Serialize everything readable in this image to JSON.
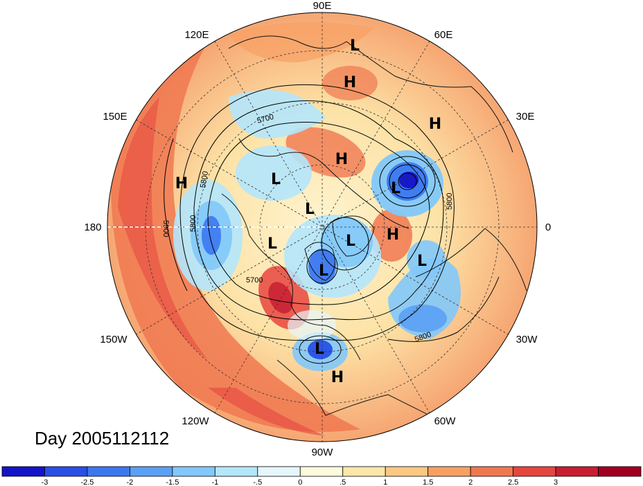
{
  "title": "Day 2005112112",
  "longitude_labels": [
    {
      "text": "90E",
      "deg": 90
    },
    {
      "text": "60E",
      "deg": 60
    },
    {
      "text": "30E",
      "deg": 30
    },
    {
      "text": "0",
      "deg": 0
    },
    {
      "text": "30W",
      "deg": -30
    },
    {
      "text": "60W",
      "deg": -60
    },
    {
      "text": "90W",
      "deg": -90
    },
    {
      "text": "120W",
      "deg": -120
    },
    {
      "text": "150W",
      "deg": -150
    },
    {
      "text": "180",
      "deg": 180
    },
    {
      "text": "150E",
      "deg": 150
    },
    {
      "text": "120E",
      "deg": 120
    }
  ],
  "pressure_centers": [
    {
      "type": "L",
      "key": "L-north-asia"
    },
    {
      "type": "H",
      "key": "H-north-asia"
    },
    {
      "type": "H",
      "key": "H-siberia"
    },
    {
      "type": "H",
      "key": "H-eurasia"
    },
    {
      "type": "H",
      "key": "H-pacific"
    },
    {
      "type": "L",
      "key": "L-bering"
    },
    {
      "type": "L",
      "key": "L-pole"
    },
    {
      "type": "L",
      "key": "L-alaska"
    },
    {
      "type": "L",
      "key": "L-greenland"
    },
    {
      "type": "L",
      "key": "L-hudson"
    },
    {
      "type": "L",
      "key": "L-barents"
    },
    {
      "type": "H",
      "key": "H-atlantic-north"
    },
    {
      "type": "L",
      "key": "L-europe"
    },
    {
      "type": "L",
      "key": "L-gulf"
    },
    {
      "type": "H",
      "key": "H-caribbean"
    }
  ],
  "contour_labels": [
    "5700",
    "5800",
    "5800",
    "5800",
    "5900",
    "5700",
    "5800"
  ],
  "colorbar": {
    "colors": [
      "#1414c8",
      "#2850e6",
      "#3c78f0",
      "#5aa0f5",
      "#82c8fa",
      "#b4e6fc",
      "#e6f6fe",
      "#fefadc",
      "#fee6aa",
      "#fcc882",
      "#f8a064",
      "#f07850",
      "#e64640",
      "#c81e32",
      "#a0001e"
    ],
    "tick_labels": [
      "-3",
      "-2.5",
      "-2",
      "-1.5",
      "-1",
      "-.5",
      "0",
      ".5",
      "1",
      "1.5",
      "2",
      "2.5",
      "3"
    ]
  }
}
